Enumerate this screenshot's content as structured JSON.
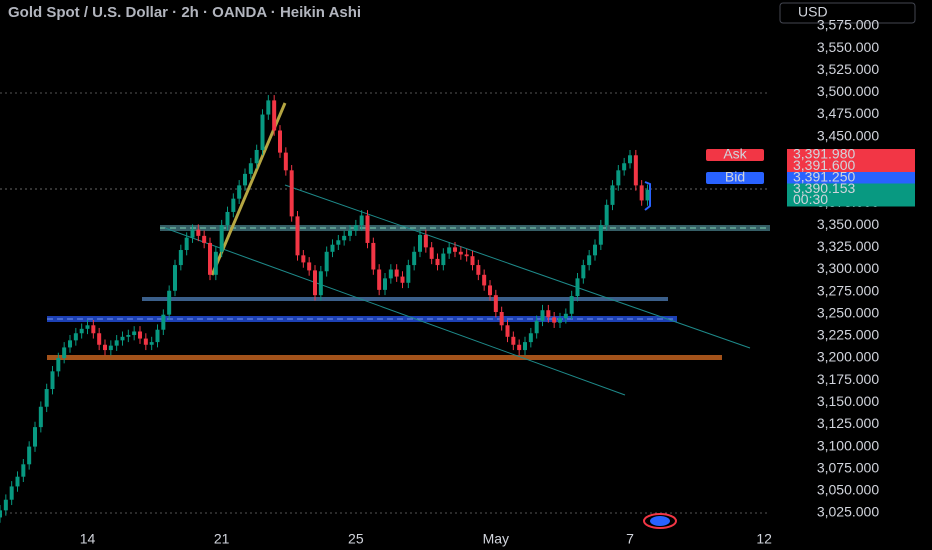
{
  "chart_data": {
    "type": "candlestick",
    "title": "Gold Spot / U.S. Dollar · 2h · OANDA · Heikin Ashi",
    "currency": "USD",
    "up_color": "#089981",
    "down_color": "#f23645",
    "open": [
      3020,
      3028,
      3040,
      3055,
      3066,
      3080,
      3100,
      3122,
      3145,
      3165,
      3185,
      3200,
      3212,
      3220,
      3228,
      3233,
      3237,
      3228,
      3215,
      3209,
      3214,
      3220,
      3224,
      3226,
      3230,
      3222,
      3215,
      3218,
      3232,
      3249,
      3276,
      3305,
      3322,
      3336,
      3345,
      3338,
      3330,
      3294,
      3320,
      3350,
      3365,
      3380,
      3395,
      3408,
      3420,
      3435,
      3475,
      3491,
      3457,
      3432,
      3412,
      3360,
      3316,
      3308,
      3299,
      3271,
      3298,
      3320,
      3328,
      3333,
      3338,
      3344,
      3350,
      3361,
      3330,
      3300,
      3277,
      3290,
      3300,
      3292,
      3285,
      3305,
      3320,
      3339,
      3325,
      3312,
      3305,
      3318,
      3325,
      3320,
      3317,
      3315,
      3305,
      3294,
      3282,
      3271,
      3252,
      3237,
      3224,
      3215,
      3209,
      3218,
      3228,
      3242,
      3254,
      3246,
      3240,
      3245,
      3250,
      3270,
      3290,
      3305,
      3316,
      3328,
      3350,
      3373,
      3395,
      3412,
      3420,
      3429,
      3395,
      3378
    ],
    "high": [
      3034,
      3046,
      3061,
      3072,
      3086,
      3106,
      3128,
      3151,
      3171,
      3191,
      3206,
      3218,
      3226,
      3234,
      3239,
      3243,
      3243,
      3234,
      3221,
      3220,
      3226,
      3230,
      3232,
      3236,
      3236,
      3228,
      3224,
      3238,
      3255,
      3282,
      3311,
      3328,
      3342,
      3351,
      3351,
      3344,
      3336,
      3326,
      3356,
      3371,
      3386,
      3401,
      3414,
      3426,
      3441,
      3481,
      3497,
      3497,
      3463,
      3438,
      3418,
      3366,
      3322,
      3314,
      3305,
      3304,
      3326,
      3334,
      3339,
      3344,
      3350,
      3356,
      3367,
      3367,
      3336,
      3306,
      3296,
      3306,
      3306,
      3298,
      3311,
      3326,
      3345,
      3345,
      3331,
      3318,
      3324,
      3331,
      3331,
      3326,
      3323,
      3321,
      3311,
      3300,
      3288,
      3277,
      3258,
      3243,
      3230,
      3221,
      3224,
      3234,
      3248,
      3260,
      3260,
      3252,
      3251,
      3256,
      3276,
      3296,
      3311,
      3322,
      3334,
      3356,
      3379,
      3401,
      3418,
      3426,
      3435,
      3435,
      3401,
      3396
    ],
    "low": [
      3014,
      3022,
      3034,
      3049,
      3060,
      3074,
      3094,
      3116,
      3139,
      3159,
      3179,
      3194,
      3206,
      3214,
      3222,
      3227,
      3222,
      3209,
      3203,
      3203,
      3208,
      3214,
      3218,
      3220,
      3216,
      3209,
      3209,
      3212,
      3226,
      3243,
      3270,
      3299,
      3316,
      3330,
      3332,
      3324,
      3288,
      3288,
      3314,
      3344,
      3359,
      3374,
      3389,
      3402,
      3414,
      3429,
      3469,
      3451,
      3426,
      3406,
      3354,
      3310,
      3302,
      3293,
      3265,
      3265,
      3292,
      3314,
      3322,
      3327,
      3332,
      3338,
      3344,
      3324,
      3294,
      3271,
      3271,
      3284,
      3286,
      3279,
      3279,
      3299,
      3314,
      3319,
      3306,
      3299,
      3299,
      3312,
      3314,
      3311,
      3309,
      3299,
      3288,
      3276,
      3265,
      3246,
      3231,
      3218,
      3209,
      3203,
      3203,
      3212,
      3222,
      3236,
      3240,
      3234,
      3234,
      3239,
      3244,
      3264,
      3284,
      3299,
      3310,
      3322,
      3344,
      3367,
      3389,
      3406,
      3414,
      3389,
      3372,
      3372
    ],
    "close": [
      3028,
      3040,
      3055,
      3066,
      3080,
      3100,
      3122,
      3145,
      3165,
      3185,
      3200,
      3212,
      3220,
      3228,
      3233,
      3237,
      3228,
      3215,
      3209,
      3214,
      3220,
      3224,
      3226,
      3230,
      3222,
      3215,
      3218,
      3232,
      3249,
      3276,
      3305,
      3322,
      3336,
      3345,
      3338,
      3330,
      3294,
      3320,
      3350,
      3365,
      3380,
      3395,
      3408,
      3420,
      3435,
      3475,
      3491,
      3457,
      3432,
      3412,
      3360,
      3316,
      3308,
      3299,
      3271,
      3298,
      3320,
      3328,
      3333,
      3338,
      3344,
      3350,
      3361,
      3330,
      3300,
      3277,
      3290,
      3300,
      3292,
      3285,
      3305,
      3320,
      3339,
      3325,
      3312,
      3305,
      3318,
      3325,
      3320,
      3317,
      3315,
      3305,
      3294,
      3282,
      3271,
      3252,
      3237,
      3224,
      3215,
      3209,
      3218,
      3228,
      3242,
      3254,
      3246,
      3240,
      3245,
      3250,
      3270,
      3290,
      3305,
      3316,
      3328,
      3350,
      3373,
      3395,
      3412,
      3420,
      3429,
      3395,
      3378,
      3390
    ],
    "xlim": [
      0,
      132
    ],
    "xticks": [
      {
        "value": 15,
        "label": "14"
      },
      {
        "value": 38,
        "label": "21"
      },
      {
        "value": 61,
        "label": "25"
      },
      {
        "value": 85,
        "label": "May"
      },
      {
        "value": 108,
        "label": "7"
      },
      {
        "value": 131,
        "label": "12"
      }
    ],
    "ylim": [
      3025,
      3575
    ],
    "yticks": [
      {
        "value": 3025,
        "label": "3,025.000"
      },
      {
        "value": 3050,
        "label": "3,050.000"
      },
      {
        "value": 3075,
        "label": "3,075.000"
      },
      {
        "value": 3100,
        "label": "3,100.000"
      },
      {
        "value": 3125,
        "label": "3,125.000"
      },
      {
        "value": 3150,
        "label": "3,150.000"
      },
      {
        "value": 3175,
        "label": "3,175.000"
      },
      {
        "value": 3200,
        "label": "3,200.000"
      },
      {
        "value": 3225,
        "label": "3,225.000"
      },
      {
        "value": 3250,
        "label": "3,250.000"
      },
      {
        "value": 3275,
        "label": "3,275.000"
      },
      {
        "value": 3300,
        "label": "3,300.000"
      },
      {
        "value": 3325,
        "label": "3,325.000"
      },
      {
        "value": 3350,
        "label": "3,350.000"
      },
      {
        "value": 3375,
        "label": "3,375.000"
      },
      {
        "value": 3400,
        "label": "3,400.000"
      },
      {
        "value": 3425,
        "label": "3,425.000"
      },
      {
        "value": 3450,
        "label": "3,450.000"
      },
      {
        "value": 3475,
        "label": "3,475.000"
      },
      {
        "value": 3500,
        "label": "3,500.000"
      },
      {
        "value": 3525,
        "label": "3,525.000"
      },
      {
        "value": 3550,
        "label": "3,550.000"
      },
      {
        "value": 3575,
        "label": "3,575.000"
      }
    ],
    "price_tags": [
      {
        "name": "Ask",
        "value": 3391.98,
        "label": "3,391.980",
        "color": "#f23645"
      },
      {
        "value": 3391.6,
        "label": "3,391.600",
        "color": "#f23645"
      },
      {
        "name": "Bid",
        "value": 3391.25,
        "label": "3,391.250",
        "color": "#2962ff"
      },
      {
        "value": 3390.153,
        "label": "3,390.153",
        "countdown": "00:30",
        "color": "#089981"
      }
    ]
  }
}
